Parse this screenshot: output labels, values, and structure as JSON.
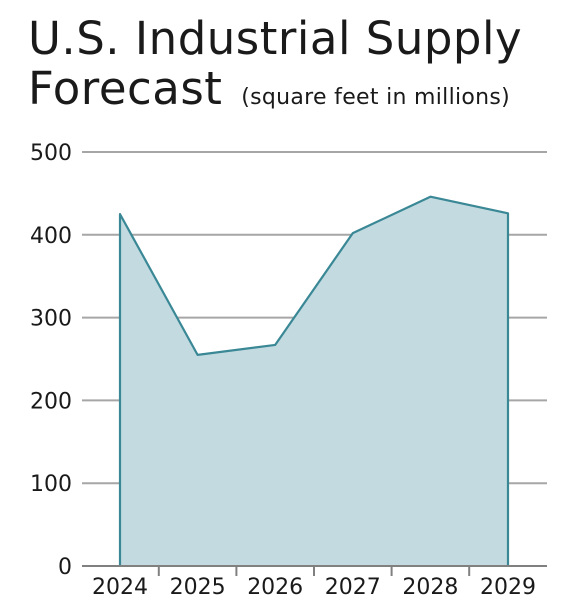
{
  "chart_data": {
    "type": "area",
    "title_line1": "U.S. Industrial Supply",
    "title_line2": "Forecast",
    "subtitle": "(square feet in millions)",
    "xlabel": "",
    "ylabel": "",
    "categories": [
      "2024",
      "2025",
      "2026",
      "2027",
      "2028",
      "2029"
    ],
    "values": [
      425,
      255,
      267,
      402,
      446,
      426
    ],
    "ylim": [
      0,
      500
    ],
    "yticks": [
      0,
      100,
      200,
      300,
      400,
      500
    ],
    "grid": true,
    "colors": {
      "fill": "#c3dbe0",
      "line": "#3a8896",
      "grid": "#a6a6a6",
      "axis": "#808080",
      "text": "#1a1a1a"
    }
  }
}
